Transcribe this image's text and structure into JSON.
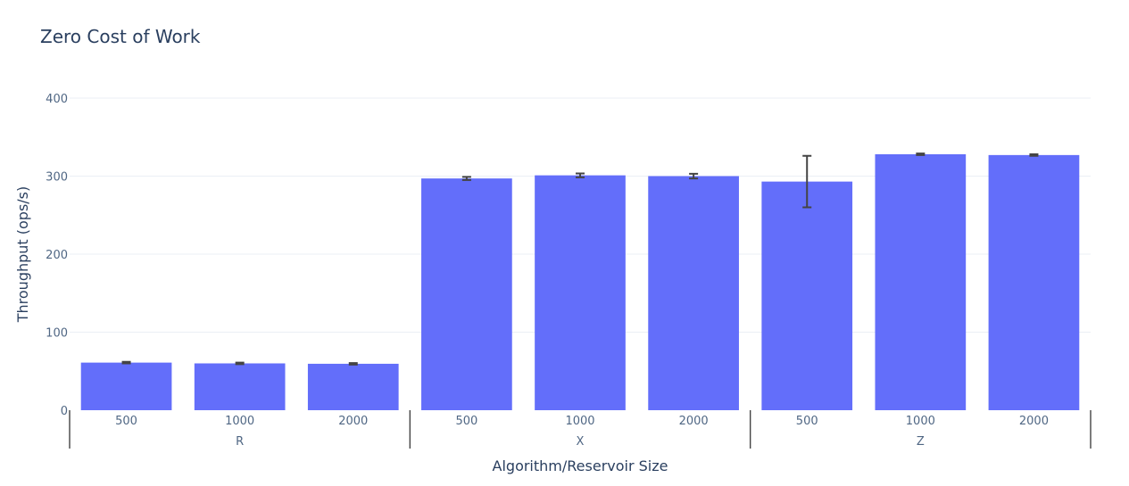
{
  "chart_data": {
    "type": "bar",
    "title": "Zero Cost of Work",
    "xlabel": "Algorithm/Reservoir Size",
    "ylabel": "Throughput (ops/s)",
    "ylim": [
      0,
      400
    ],
    "yticks": [
      0,
      100,
      200,
      300,
      400
    ],
    "groups": [
      "R",
      "X",
      "Z"
    ],
    "categories": [
      "500",
      "1000",
      "2000",
      "500",
      "1000",
      "2000",
      "500",
      "1000",
      "2000"
    ],
    "values": [
      61,
      60,
      59.5,
      297,
      301,
      300,
      293,
      328,
      327
    ],
    "error": [
      1,
      1,
      1,
      2,
      2.5,
      3,
      33,
      1,
      1
    ],
    "grid": true,
    "colors": {
      "bar": "#636efa",
      "error_bar": "#444444",
      "grid": "#ebeff5",
      "text": "#2a3f5f"
    }
  }
}
